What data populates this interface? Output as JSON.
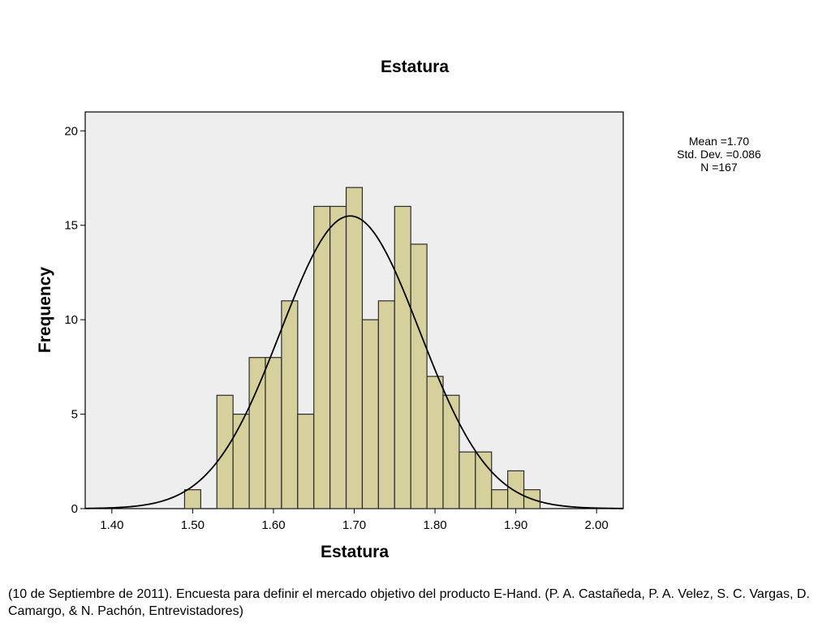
{
  "chart_data": {
    "type": "bar",
    "title": "Estatura",
    "xlabel": "Estatura",
    "ylabel": "Frequency",
    "x_ticks": [
      "1.40",
      "1.50",
      "1.60",
      "1.70",
      "1.80",
      "1.90",
      "2.00"
    ],
    "y_ticks": [
      "0",
      "5",
      "10",
      "15",
      "20"
    ],
    "xlim": [
      1.367,
      2.033
    ],
    "ylim": [
      0,
      21
    ],
    "bin_width": 0.02,
    "bins": [
      {
        "start": 1.49,
        "end": 1.51,
        "count": 1
      },
      {
        "start": 1.53,
        "end": 1.55,
        "count": 6
      },
      {
        "start": 1.55,
        "end": 1.57,
        "count": 5
      },
      {
        "start": 1.57,
        "end": 1.59,
        "count": 8
      },
      {
        "start": 1.59,
        "end": 1.61,
        "count": 8
      },
      {
        "start": 1.61,
        "end": 1.63,
        "count": 11
      },
      {
        "start": 1.63,
        "end": 1.65,
        "count": 5
      },
      {
        "start": 1.65,
        "end": 1.67,
        "count": 16
      },
      {
        "start": 1.67,
        "end": 1.69,
        "count": 16
      },
      {
        "start": 1.69,
        "end": 1.71,
        "count": 17
      },
      {
        "start": 1.71,
        "end": 1.73,
        "count": 10
      },
      {
        "start": 1.73,
        "end": 1.75,
        "count": 11
      },
      {
        "start": 1.75,
        "end": 1.77,
        "count": 16
      },
      {
        "start": 1.77,
        "end": 1.79,
        "count": 14
      },
      {
        "start": 1.79,
        "end": 1.81,
        "count": 7
      },
      {
        "start": 1.81,
        "end": 1.83,
        "count": 6
      },
      {
        "start": 1.83,
        "end": 1.85,
        "count": 3
      },
      {
        "start": 1.85,
        "end": 1.87,
        "count": 3
      },
      {
        "start": 1.87,
        "end": 1.89,
        "count": 1
      },
      {
        "start": 1.89,
        "end": 1.91,
        "count": 2
      },
      {
        "start": 1.91,
        "end": 1.93,
        "count": 1
      }
    ],
    "normal_curve": {
      "mean": 1.695,
      "sd": 0.086,
      "n": 167
    },
    "stats": {
      "mean_label": "Mean =1.70",
      "std_label": "Std. Dev. =0.086",
      "n_label": "N =167"
    },
    "grid": false,
    "colors": {
      "bar_fill": "#d6d09c",
      "bar_stroke": "#2b2b2b",
      "plot_background": "#eeeeee",
      "curve": "#000000"
    }
  },
  "citation": "(10 de Septiembre de 2011). Encuesta para definir el mercado objetivo del producto E-Hand. (P. A. Castañeda, P. A. Velez, S. C. Vargas, D. Camargo, & N. Pachón, Entrevistadores)"
}
